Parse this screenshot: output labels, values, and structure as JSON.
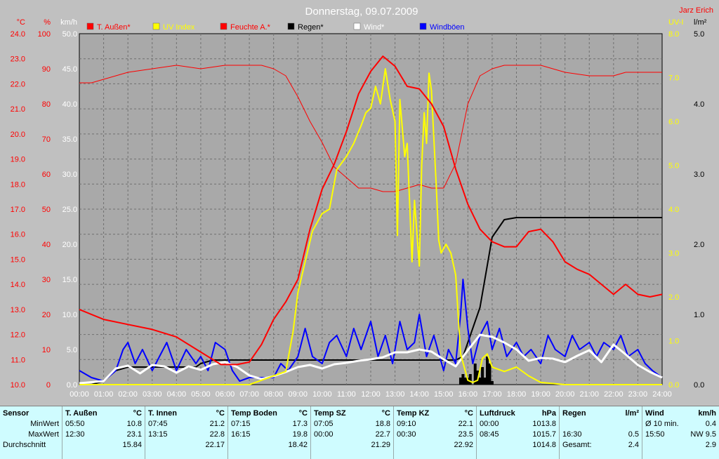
{
  "chart_data": {
    "type": "line",
    "title": "Donnerstag, 09.07.2009",
    "corner_label": "Jarz Erich",
    "x_ticks": [
      "00:00",
      "01:00",
      "02:00",
      "03:00",
      "04:00",
      "05:00",
      "06:00",
      "07:00",
      "08:00",
      "09:00",
      "10:00",
      "11:00",
      "12:00",
      "13:00",
      "14:00",
      "15:00",
      "16:00",
      "17:00",
      "18:00",
      "19:00",
      "20:00",
      "21:00",
      "22:00",
      "23:00",
      "24:00"
    ],
    "x_range_hours": [
      0,
      24
    ],
    "grid": true,
    "axes": {
      "temp": {
        "unit": "°C",
        "range": [
          10.0,
          24.0
        ],
        "color": "#ff0000",
        "ticks": [
          "10.0",
          "11.0",
          "12.0",
          "13.0",
          "14.0",
          "15.0",
          "16.0",
          "17.0",
          "18.0",
          "19.0",
          "20.0",
          "21.0",
          "22.0",
          "23.0",
          "24.0"
        ]
      },
      "hum": {
        "unit": "%",
        "range": [
          0,
          100
        ],
        "color": "#ff0000",
        "ticks": [
          "0",
          "10",
          "20",
          "30",
          "40",
          "50",
          "60",
          "70",
          "80",
          "90",
          "100"
        ]
      },
      "wind": {
        "unit": "km/h",
        "range": [
          0,
          50
        ],
        "color": "#ffffff",
        "ticks": [
          "0.0",
          "5.0",
          "10.0",
          "15.0",
          "20.0",
          "25.0",
          "30.0",
          "35.0",
          "40.0",
          "45.0",
          "50.0"
        ]
      },
      "uv": {
        "unit": "UV-I",
        "range": [
          0,
          8
        ],
        "color": "#ffff00",
        "ticks": [
          "0.0",
          "1.0",
          "2.0",
          "3.0",
          "4.0",
          "5.0",
          "6.0",
          "7.0",
          "8.0"
        ]
      },
      "rain": {
        "unit": "l/m²",
        "range": [
          0,
          5
        ],
        "color": "#000000",
        "ticks": [
          "0.0",
          "1.0",
          "2.0",
          "3.0",
          "4.0",
          "5.0"
        ]
      }
    },
    "legend": [
      {
        "label": "T. Außen*",
        "color": "#ff0000"
      },
      {
        "label": "UV Index",
        "color": "#ffff00"
      },
      {
        "label": "Feuchte A.*",
        "color": "#ff0000"
      },
      {
        "label": "Regen*",
        "color": "#000000"
      },
      {
        "label": "Wind*",
        "color": "#ffffff"
      },
      {
        "label": "Windböen",
        "color": "#0000ff"
      }
    ],
    "series": [
      {
        "key": "temp_out",
        "axis": "temp",
        "color": "#ff0000",
        "width": 2,
        "x": [
          0,
          1,
          2,
          3,
          4,
          5,
          5.83,
          6.5,
          7,
          7.5,
          8,
          8.5,
          9,
          9.5,
          10,
          10.5,
          11,
          11.5,
          12,
          12.5,
          13,
          13.5,
          14,
          14.5,
          15,
          15.5,
          16,
          16.5,
          17,
          17.5,
          18,
          18.5,
          19,
          19.5,
          20,
          20.5,
          21,
          21.5,
          22,
          22.5,
          23,
          23.5,
          24
        ],
        "y": [
          13.0,
          12.6,
          12.4,
          12.2,
          11.9,
          11.3,
          10.8,
          10.8,
          10.9,
          11.6,
          12.6,
          13.3,
          14.2,
          16.2,
          17.8,
          18.8,
          20.1,
          21.6,
          22.5,
          23.1,
          22.7,
          21.9,
          21.8,
          21.2,
          20.3,
          18.6,
          17.2,
          16.2,
          15.7,
          15.5,
          15.5,
          16.1,
          16.2,
          15.7,
          14.9,
          14.6,
          14.4,
          14.0,
          13.6,
          14.0,
          13.6,
          13.5,
          13.6
        ]
      },
      {
        "key": "humidity",
        "axis": "hum",
        "color": "#ff0000",
        "width": 1,
        "x": [
          0,
          0.5,
          1,
          2,
          3,
          4,
          5,
          6,
          7,
          7.5,
          8,
          8.5,
          9,
          9.5,
          10,
          10.5,
          11,
          11.5,
          12,
          12.5,
          13,
          13.5,
          14,
          14.5,
          15,
          15.5,
          16,
          16.5,
          17,
          17.5,
          18,
          19,
          20,
          21,
          22,
          22.5,
          23,
          24
        ],
        "y": [
          86,
          86,
          87,
          89,
          90,
          91,
          90,
          91,
          91,
          91,
          90,
          88,
          82,
          75,
          69,
          62,
          59,
          56,
          56,
          55,
          55,
          56,
          57,
          56,
          56,
          63,
          80,
          88,
          90,
          91,
          91,
          91,
          89,
          88,
          88,
          89,
          89,
          89
        ]
      },
      {
        "key": "uv",
        "axis": "uv",
        "color": "#ffff00",
        "width": 2,
        "x": [
          0,
          7,
          7.5,
          8,
          8.5,
          8.8,
          9,
          9.3,
          9.6,
          10,
          10.3,
          10.6,
          11,
          11.3,
          11.6,
          11.8,
          12,
          12.2,
          12.4,
          12.6,
          12.8,
          13,
          13.1,
          13.2,
          13.4,
          13.5,
          13.7,
          13.8,
          14,
          14.1,
          14.2,
          14.3,
          14.4,
          14.5,
          14.7,
          14.8,
          14.9,
          15.1,
          15.3,
          15.5,
          15.7,
          16,
          16.2,
          16.4,
          16.6,
          16.8,
          17,
          17.5,
          18,
          18.5,
          19,
          20,
          24
        ],
        "y": [
          0,
          0,
          0.1,
          0.2,
          0.3,
          1.2,
          2.1,
          2.8,
          3.5,
          3.9,
          4.0,
          4.9,
          5.2,
          5.5,
          5.9,
          6.2,
          6.3,
          6.8,
          6.4,
          7.2,
          6.5,
          6.0,
          3.4,
          6.5,
          5.2,
          5.5,
          2.8,
          4.2,
          2.7,
          5.0,
          6.2,
          5.5,
          7.1,
          6.7,
          4.5,
          3.3,
          3.0,
          3.2,
          3.0,
          2.5,
          0.7,
          0.1,
          0.05,
          0.1,
          0.6,
          0.7,
          0.4,
          0.3,
          0.4,
          0.2,
          0.05,
          0,
          0
        ]
      },
      {
        "key": "rain",
        "axis": "rain",
        "color": "#000000",
        "width": 2,
        "x": [
          0,
          0.5,
          1,
          1.5,
          2,
          3,
          4,
          4.8,
          5,
          5.5,
          6,
          7,
          8,
          9,
          10,
          11,
          12,
          13,
          14,
          15,
          15.5,
          15.8,
          16,
          16.5,
          16.8,
          17,
          17.5,
          18,
          18.5,
          19,
          20,
          24
        ],
        "y": [
          0,
          0,
          0.05,
          0.2,
          0.25,
          0.25,
          0.25,
          0.25,
          0.3,
          0.35,
          0.35,
          0.35,
          0.35,
          0.35,
          0.35,
          0.35,
          0.35,
          0.35,
          0.35,
          0.35,
          0.35,
          0.4,
          0.6,
          1.1,
          1.7,
          2.1,
          2.35,
          2.38,
          2.38,
          2.38,
          2.38,
          2.38
        ]
      },
      {
        "key": "gusts",
        "axis": "wind",
        "color": "#0000ff",
        "width": 2,
        "x": [
          0,
          0.5,
          1,
          1.5,
          1.8,
          2,
          2.3,
          2.6,
          3,
          3.3,
          3.6,
          4,
          4.4,
          4.8,
          5,
          5.3,
          5.6,
          6,
          6.3,
          6.6,
          7,
          7.5,
          8,
          8.3,
          8.6,
          9,
          9.3,
          9.6,
          10,
          10.3,
          10.6,
          11,
          11.3,
          11.6,
          12,
          12.3,
          12.6,
          12.9,
          13.2,
          13.5,
          13.8,
          14,
          14.3,
          14.6,
          15,
          15.2,
          15.5,
          15.7,
          15.8,
          16,
          16.2,
          16.5,
          16.8,
          17,
          17.3,
          17.6,
          18,
          18.3,
          18.6,
          19,
          19.3,
          19.6,
          20,
          20.3,
          20.6,
          21,
          21.3,
          21.6,
          22,
          22.3,
          22.6,
          23,
          23.3,
          23.6,
          24
        ],
        "y": [
          2,
          1,
          0.5,
          2,
          5,
          6,
          3,
          5,
          2,
          4,
          6,
          2,
          5,
          3,
          4,
          2,
          6,
          5,
          2,
          0.5,
          1,
          1,
          1,
          3,
          2,
          4,
          8,
          4,
          3,
          6,
          7,
          4,
          8,
          5,
          9,
          4,
          7,
          3,
          9,
          5,
          6,
          10,
          4,
          7,
          2,
          5,
          3,
          10,
          15,
          8,
          3,
          7,
          9,
          5,
          8,
          4,
          6,
          4,
          5,
          3,
          7,
          5,
          4,
          7,
          5,
          6,
          4,
          6,
          5,
          7,
          4,
          5,
          3,
          2,
          1
        ]
      },
      {
        "key": "wind",
        "axis": "wind",
        "color": "#ffffff",
        "width": 3,
        "x": [
          0,
          1,
          1.5,
          2,
          2.5,
          3,
          3.5,
          4,
          4.5,
          5,
          5.5,
          6,
          6.5,
          7,
          7.5,
          8,
          8.5,
          9,
          9.5,
          10,
          10.5,
          11,
          11.5,
          12,
          12.5,
          13,
          13.5,
          14,
          14.5,
          15,
          15.5,
          16,
          16.5,
          17,
          17.5,
          18,
          18.5,
          19,
          19.5,
          20,
          20.5,
          21,
          21.5,
          22,
          22.5,
          23,
          23.5,
          24
        ],
        "y": [
          0.2,
          0.5,
          2.3,
          2.7,
          1.6,
          2.8,
          2.6,
          1.7,
          2.6,
          2.1,
          2.9,
          3.2,
          2.5,
          1.3,
          0.8,
          1.2,
          1.8,
          2.5,
          2.8,
          2.3,
          2.9,
          3.1,
          3.4,
          3.6,
          3.9,
          4.6,
          4.6,
          5.0,
          4.7,
          3.6,
          2.6,
          4.9,
          7.1,
          6.8,
          6.0,
          5.0,
          3.4,
          3.8,
          3.7,
          3.2,
          4.1,
          4.9,
          3.2,
          5.7,
          4.3,
          2.8,
          1.8,
          1.0
        ]
      }
    ],
    "rain_bars": {
      "x": [
        15.7,
        15.8,
        15.9,
        16.0,
        16.1,
        16.3,
        16.4,
        16.5,
        16.6,
        16.7,
        16.8,
        16.9,
        17.0
      ],
      "y": [
        0.1,
        0.15,
        0.1,
        0.1,
        0.15,
        0.3,
        0.2,
        0.1,
        0.25,
        0.1,
        0.4,
        0.3,
        0.05
      ]
    }
  },
  "stats_table": {
    "columns": [
      {
        "header": "Sensor",
        "unit": "",
        "min_time": "",
        "min_value": "MinWert",
        "max_time": "",
        "max_value": "MaxWert",
        "avg_label": "Durchschnitt",
        "avg_value": ""
      },
      {
        "header": "T. Außen",
        "unit": "°C",
        "min_time": "05:50",
        "min_value": "10.8",
        "max_time": "12:30",
        "max_value": "23.1",
        "avg_label": "",
        "avg_value": "15.84"
      },
      {
        "header": "T. Innen",
        "unit": "°C",
        "min_time": "07:45",
        "min_value": "21.2",
        "max_time": "13:15",
        "max_value": "22.8",
        "avg_label": "",
        "avg_value": "22.17"
      },
      {
        "header": "Temp Boden",
        "unit": "°C",
        "min_time": "07:15",
        "min_value": "17.3",
        "max_time": "16:15",
        "max_value": "19.8",
        "avg_label": "",
        "avg_value": "18.42"
      },
      {
        "header": "Temp SZ",
        "unit": "°C",
        "min_time": "07:05",
        "min_value": "18.8",
        "max_time": "00:00",
        "max_value": "22.7",
        "avg_label": "",
        "avg_value": "21.29"
      },
      {
        "header": "Temp KZ",
        "unit": "°C",
        "min_time": "09:10",
        "min_value": "22.1",
        "max_time": "00:30",
        "max_value": "23.5",
        "avg_label": "",
        "avg_value": "22.92"
      },
      {
        "header": "Luftdruck",
        "unit": "hPa",
        "min_time": "00:00",
        "min_value": "1013.8",
        "max_time": "08:45",
        "max_value": "1015.7",
        "avg_label": "",
        "avg_value": "1014.8"
      },
      {
        "header": "Regen",
        "unit": "l/m²",
        "min_time": "",
        "min_value": "",
        "max_time": "16:30",
        "max_value": "0.5",
        "avg_label": "Gesamt:",
        "avg_value": "2.4"
      },
      {
        "header": "Wind",
        "unit": "km/h",
        "min_time": "Ø 10 min.",
        "min_value": "0.4",
        "max_time": "15:50",
        "max_value": "NW 9.5",
        "avg_label": "",
        "avg_value": "2.9"
      }
    ]
  }
}
